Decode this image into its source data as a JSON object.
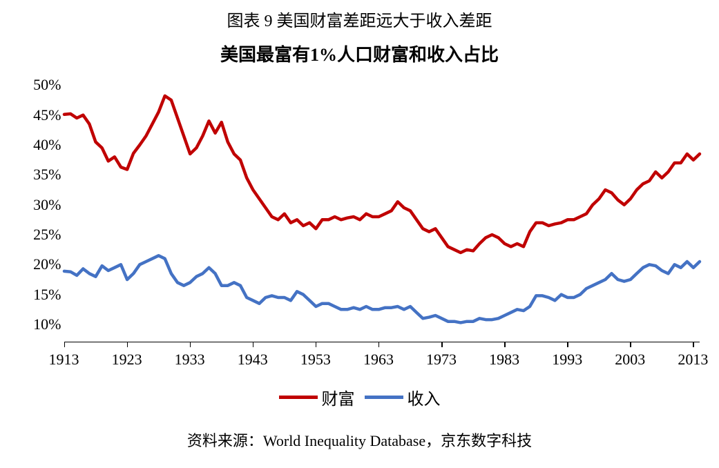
{
  "figure_title": "图表 9 美国财富差距远大于收入差距",
  "chart": {
    "type": "line",
    "title": "美国最富有1%人口财富和收入占比",
    "title_fontsize": 26,
    "title_weight": "bold",
    "background_color": "#ffffff",
    "x": {
      "start": 1913,
      "end": 2014,
      "tick_start": 1913,
      "tick_step": 10,
      "tick_count": 11,
      "tick_fontsize": 22,
      "tick_font": "Times New Roman",
      "axis_color": "#000000"
    },
    "y": {
      "min": 7,
      "max": 52,
      "tick_start": 10,
      "tick_step": 5,
      "tick_count": 9,
      "suffix": "%",
      "tick_fontsize": 22,
      "tick_font": "Times New Roman"
    },
    "series": [
      {
        "key": "wealth",
        "label": "财富",
        "color": "#c00000",
        "line_width": 4.5,
        "years": [
          1913,
          1914,
          1915,
          1916,
          1917,
          1918,
          1919,
          1920,
          1921,
          1922,
          1923,
          1924,
          1925,
          1926,
          1927,
          1928,
          1929,
          1930,
          1931,
          1932,
          1933,
          1934,
          1935,
          1936,
          1937,
          1938,
          1939,
          1940,
          1941,
          1942,
          1943,
          1944,
          1945,
          1946,
          1947,
          1948,
          1949,
          1950,
          1951,
          1952,
          1953,
          1954,
          1955,
          1956,
          1957,
          1958,
          1959,
          1960,
          1961,
          1962,
          1963,
          1964,
          1965,
          1966,
          1967,
          1968,
          1969,
          1970,
          1971,
          1972,
          1973,
          1974,
          1975,
          1976,
          1977,
          1978,
          1979,
          1980,
          1981,
          1982,
          1983,
          1984,
          1985,
          1986,
          1987,
          1988,
          1989,
          1990,
          1991,
          1992,
          1993,
          1994,
          1995,
          1996,
          1997,
          1998,
          1999,
          2000,
          2001,
          2002,
          2003,
          2004,
          2005,
          2006,
          2007,
          2008,
          2009,
          2010,
          2011,
          2012,
          2013,
          2014
        ],
        "values": [
          45.1,
          45.2,
          44.5,
          45.0,
          43.5,
          40.5,
          39.5,
          37.3,
          38.0,
          36.3,
          35.9,
          38.6,
          40.0,
          41.5,
          43.5,
          45.5,
          48.2,
          47.5,
          44.5,
          41.5,
          38.5,
          39.5,
          41.5,
          44.0,
          42.0,
          43.8,
          40.5,
          38.5,
          37.5,
          34.5,
          32.5,
          31.0,
          29.5,
          28.0,
          27.5,
          28.5,
          27.0,
          27.5,
          26.5,
          27.0,
          26.0,
          27.5,
          27.5,
          28.0,
          27.5,
          27.8,
          28.0,
          27.5,
          28.5,
          28.0,
          28.0,
          28.5,
          29.0,
          30.5,
          29.5,
          29.0,
          27.5,
          26.0,
          25.5,
          26.0,
          24.5,
          23.0,
          22.5,
          22.0,
          22.5,
          22.3,
          23.5,
          24.5,
          25.0,
          24.5,
          23.5,
          23.0,
          23.5,
          23.0,
          25.5,
          27.0,
          27.0,
          26.5,
          26.8,
          27.0,
          27.5,
          27.5,
          28.0,
          28.5,
          30.0,
          31.0,
          32.5,
          32.0,
          30.8,
          30.0,
          31.0,
          32.5,
          33.5,
          34.0,
          35.5,
          34.5,
          35.5,
          37.0,
          37.0,
          38.5,
          37.5,
          38.5
        ]
      },
      {
        "key": "income",
        "label": "收入",
        "color": "#4472c4",
        "line_width": 4.5,
        "years": [
          1913,
          1914,
          1915,
          1916,
          1917,
          1918,
          1919,
          1920,
          1921,
          1922,
          1923,
          1924,
          1925,
          1926,
          1927,
          1928,
          1929,
          1930,
          1931,
          1932,
          1933,
          1934,
          1935,
          1936,
          1937,
          1938,
          1939,
          1940,
          1941,
          1942,
          1943,
          1944,
          1945,
          1946,
          1947,
          1948,
          1949,
          1950,
          1951,
          1952,
          1953,
          1954,
          1955,
          1956,
          1957,
          1958,
          1959,
          1960,
          1961,
          1962,
          1963,
          1964,
          1965,
          1966,
          1967,
          1968,
          1969,
          1970,
          1971,
          1972,
          1973,
          1974,
          1975,
          1976,
          1977,
          1978,
          1979,
          1980,
          1981,
          1982,
          1983,
          1984,
          1985,
          1986,
          1987,
          1988,
          1989,
          1990,
          1991,
          1992,
          1993,
          1994,
          1995,
          1996,
          1997,
          1998,
          1999,
          2000,
          2001,
          2002,
          2003,
          2004,
          2005,
          2006,
          2007,
          2008,
          2009,
          2010,
          2011,
          2012,
          2013,
          2014
        ],
        "values": [
          18.9,
          18.8,
          18.2,
          19.3,
          18.5,
          18.0,
          19.8,
          19.0,
          19.5,
          20.0,
          17.5,
          18.5,
          20.0,
          20.5,
          21.0,
          21.5,
          21.0,
          18.5,
          17.0,
          16.5,
          17.0,
          18.0,
          18.5,
          19.5,
          18.5,
          16.5,
          16.5,
          17.0,
          16.5,
          14.5,
          14.0,
          13.5,
          14.5,
          14.8,
          14.5,
          14.5,
          14.0,
          15.5,
          15.0,
          14.0,
          13.0,
          13.5,
          13.5,
          13.0,
          12.5,
          12.5,
          12.8,
          12.5,
          13.0,
          12.5,
          12.5,
          12.8,
          12.8,
          13.0,
          12.5,
          13.0,
          12.0,
          11.0,
          11.2,
          11.5,
          11.0,
          10.5,
          10.5,
          10.3,
          10.5,
          10.5,
          11.0,
          10.8,
          10.8,
          11.0,
          11.5,
          12.0,
          12.5,
          12.3,
          13.0,
          14.8,
          14.8,
          14.5,
          14.0,
          15.0,
          14.5,
          14.5,
          15.0,
          16.0,
          16.5,
          17.0,
          17.5,
          18.5,
          17.5,
          17.2,
          17.5,
          18.5,
          19.5,
          20.0,
          19.8,
          19.0,
          18.5,
          20.0,
          19.5,
          20.5,
          19.5,
          20.5
        ]
      }
    ],
    "legend": {
      "position": "bottom",
      "swatch_width": 56,
      "swatch_height": 5,
      "fontsize": 24
    }
  },
  "source": {
    "prefix": "资料来源：",
    "latin": "World Inequality Database",
    "sep": "，",
    "cn": "京东数字科技",
    "fontsize": 22
  }
}
